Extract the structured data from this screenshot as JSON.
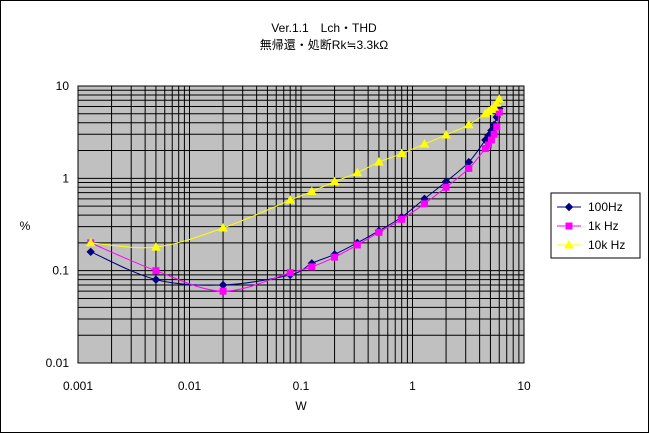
{
  "chart_data": {
    "type": "line",
    "title": "Ver.1.1　Lch・THD",
    "subtitle": "無帰還・処断Rk≒3.3kΩ",
    "xlabel": "W",
    "ylabel": "%",
    "xscale": "log",
    "yscale": "log",
    "xlim": [
      0.001,
      10
    ],
    "ylim": [
      0.01,
      10
    ],
    "x_ticks": [
      "0.001",
      "0.01",
      "0.1",
      "1",
      "10"
    ],
    "y_ticks": [
      "10",
      "1",
      "0.1",
      "0.01"
    ],
    "grid": true,
    "plot_background": "#c0c0c0",
    "legend_position": "right",
    "series": [
      {
        "name": "100Hz",
        "color": "#000080",
        "marker": "diamond",
        "points": [
          [
            0.0013,
            0.16
          ],
          [
            0.005,
            0.08
          ],
          [
            0.02,
            0.07
          ],
          [
            0.08,
            0.09
          ],
          [
            0.125,
            0.12
          ],
          [
            0.2,
            0.15
          ],
          [
            0.32,
            0.2
          ],
          [
            0.5,
            0.27
          ],
          [
            0.8,
            0.38
          ],
          [
            1.28,
            0.6
          ],
          [
            2,
            0.92
          ],
          [
            3.2,
            1.5
          ],
          [
            4.5,
            2.6
          ],
          [
            4.8,
            2.9
          ],
          [
            5.1,
            3.3
          ],
          [
            5.4,
            3.8
          ],
          [
            5.7,
            4.6
          ],
          [
            6,
            5.7
          ]
        ]
      },
      {
        "name": "1k Hz",
        "color": "#ff00ff",
        "marker": "square",
        "points": [
          [
            0.0013,
            0.2
          ],
          [
            0.005,
            0.1
          ],
          [
            0.02,
            0.06
          ],
          [
            0.08,
            0.095
          ],
          [
            0.125,
            0.11
          ],
          [
            0.2,
            0.14
          ],
          [
            0.32,
            0.19
          ],
          [
            0.5,
            0.26
          ],
          [
            0.8,
            0.36
          ],
          [
            1.28,
            0.53
          ],
          [
            2,
            0.8
          ],
          [
            3.2,
            1.28
          ],
          [
            4.5,
            2.1
          ],
          [
            4.8,
            2.3
          ],
          [
            5.1,
            2.6
          ],
          [
            5.4,
            3.0
          ],
          [
            5.7,
            3.6
          ],
          [
            6,
            5.2
          ]
        ]
      },
      {
        "name": "10k Hz",
        "color": "#ffff00",
        "marker": "triangle",
        "points": [
          [
            0.0013,
            0.2
          ],
          [
            0.005,
            0.18
          ],
          [
            0.02,
            0.29
          ],
          [
            0.08,
            0.58
          ],
          [
            0.125,
            0.72
          ],
          [
            0.2,
            0.92
          ],
          [
            0.32,
            1.15
          ],
          [
            0.5,
            1.5
          ],
          [
            0.8,
            1.85
          ],
          [
            1.28,
            2.35
          ],
          [
            2,
            2.95
          ],
          [
            3.2,
            3.8
          ],
          [
            4.5,
            5.0
          ],
          [
            4.8,
            5.3
          ],
          [
            5.1,
            5.6
          ],
          [
            5.4,
            5.9
          ],
          [
            5.7,
            6.5
          ],
          [
            6,
            7.2
          ]
        ]
      }
    ]
  }
}
